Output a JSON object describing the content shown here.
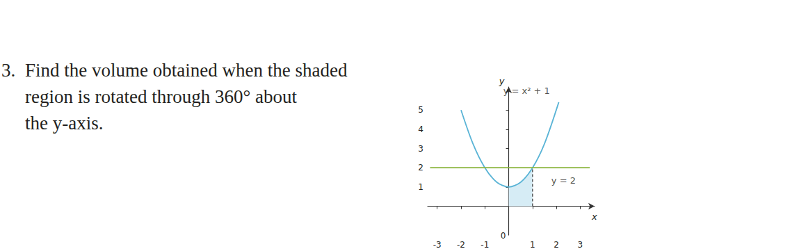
{
  "question": {
    "number": "3.",
    "lines": [
      "Find the volume obtained when the shaded",
      "region is rotated through 360° about",
      "the y-axis."
    ]
  },
  "chart_data": {
    "type": "line",
    "x_label": "x",
    "y_label": "y",
    "xlim": [
      -3.4,
      3.6
    ],
    "ylim": [
      -1.5,
      6.2
    ],
    "xticks": [
      -3,
      -2,
      -1,
      0,
      1,
      2,
      3
    ],
    "yticks": [
      1,
      2,
      3,
      4,
      5
    ],
    "grid": false,
    "series": [
      {
        "type": "area",
        "color": "#d6ecf5",
        "x": [
          0,
          0.25,
          0.5,
          0.75,
          1
        ],
        "values": [
          1,
          1.06,
          1.25,
          1.56,
          2
        ]
      },
      {
        "name": "y = x² + 1",
        "type": "line",
        "line_style": "solid",
        "color": "#5ab4d6",
        "x": [
          -2,
          -1.5,
          -1,
          -0.5,
          0,
          0.5,
          1,
          1.5,
          2.1
        ],
        "values": [
          5,
          3.25,
          2,
          1.25,
          1,
          1.25,
          2,
          3.25,
          5.41
        ]
      },
      {
        "name": "y = 2",
        "type": "line",
        "line_style": "solid",
        "color": "#8ab43c",
        "x": [
          -3.3,
          3.4
        ],
        "values": [
          2,
          2
        ]
      },
      {
        "type": "line",
        "line_style": "dashed",
        "color": "#333333",
        "x": [
          1,
          1
        ],
        "values": [
          0,
          2
        ]
      }
    ],
    "annotations": [
      {
        "text": "y = x² + 1",
        "x": 0.75,
        "y": 6.0
      },
      {
        "text": "y = 2",
        "x": 2.3,
        "y": 1.35
      }
    ]
  }
}
